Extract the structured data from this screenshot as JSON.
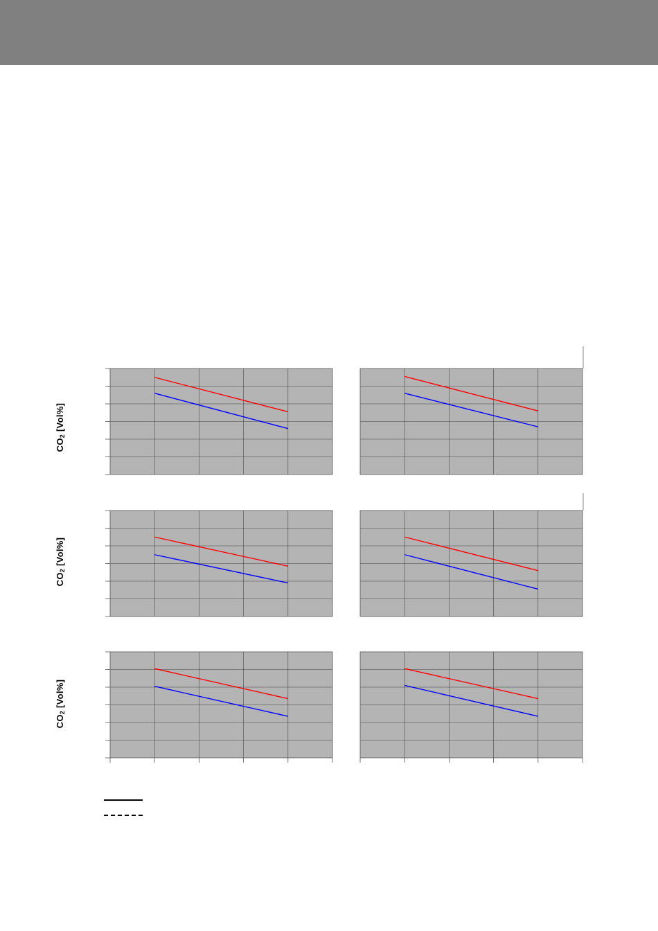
{
  "header": {
    "color": "#808080"
  },
  "y_axis_label": {
    "text": "CO",
    "subscript": "2",
    "unit": " [Vol%]"
  },
  "colors": {
    "background": "#b4b4b4",
    "grid": "#000000",
    "series_red": "#ff0000",
    "series_blue": "#0000ff"
  },
  "legend": {
    "entries": [
      {
        "style": "solid",
        "text": ""
      },
      {
        "style": "dashed",
        "text": ""
      }
    ]
  },
  "chart_data": [
    {
      "type": "line",
      "row": 1,
      "col": 1,
      "xlim": [
        0,
        5
      ],
      "ylim": [
        0,
        6
      ],
      "grid": true,
      "series": [
        {
          "color": "red",
          "x": [
            1,
            4
          ],
          "y": [
            5.5,
            3.55
          ]
        },
        {
          "color": "blue",
          "x": [
            1,
            4
          ],
          "y": [
            4.6,
            2.6
          ]
        }
      ]
    },
    {
      "type": "line",
      "row": 1,
      "col": 2,
      "xlim": [
        0,
        5
      ],
      "ylim": [
        0,
        6
      ],
      "grid": true,
      "series": [
        {
          "color": "red",
          "x": [
            1,
            4
          ],
          "y": [
            5.55,
            3.6
          ]
        },
        {
          "color": "blue",
          "x": [
            1,
            4
          ],
          "y": [
            4.6,
            2.7
          ]
        }
      ]
    },
    {
      "type": "line",
      "row": 2,
      "col": 1,
      "xlim": [
        0,
        5
      ],
      "ylim": [
        0,
        6
      ],
      "grid": true,
      "series": [
        {
          "color": "red",
          "x": [
            1,
            4
          ],
          "y": [
            4.5,
            2.85
          ]
        },
        {
          "color": "blue",
          "x": [
            1,
            4
          ],
          "y": [
            3.5,
            1.9
          ]
        }
      ]
    },
    {
      "type": "line",
      "row": 2,
      "col": 2,
      "xlim": [
        0,
        5
      ],
      "ylim": [
        0,
        6
      ],
      "grid": true,
      "series": [
        {
          "color": "red",
          "x": [
            1,
            4
          ],
          "y": [
            4.5,
            2.6
          ]
        },
        {
          "color": "blue",
          "x": [
            1,
            4
          ],
          "y": [
            3.5,
            1.55
          ]
        }
      ]
    },
    {
      "type": "line",
      "row": 3,
      "col": 1,
      "xlim": [
        0,
        5
      ],
      "ylim": [
        0,
        6
      ],
      "grid": true,
      "series": [
        {
          "color": "red",
          "x": [
            1,
            4
          ],
          "y": [
            5.05,
            3.35
          ]
        },
        {
          "color": "blue",
          "x": [
            1,
            4
          ],
          "y": [
            4.05,
            2.35
          ]
        }
      ]
    },
    {
      "type": "line",
      "row": 3,
      "col": 2,
      "xlim": [
        0,
        5
      ],
      "ylim": [
        0,
        6
      ],
      "grid": true,
      "series": [
        {
          "color": "red",
          "x": [
            1,
            4
          ],
          "y": [
            5.05,
            3.35
          ]
        },
        {
          "color": "blue",
          "x": [
            1,
            4
          ],
          "y": [
            4.1,
            2.35
          ]
        }
      ]
    }
  ]
}
